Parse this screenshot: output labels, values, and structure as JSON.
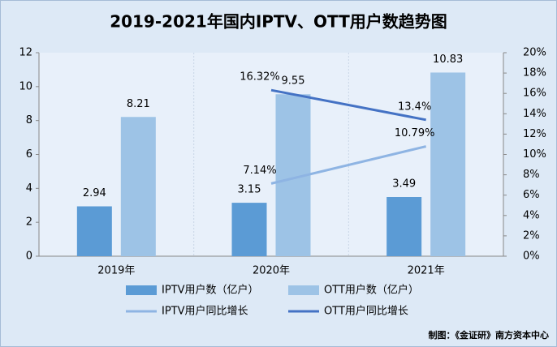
{
  "chart_data": {
    "type": "bar",
    "title": "2019-2021年国内IPTV、OTT用户数趋势图",
    "source": "制图：《金证研》南方资本中心",
    "categories": [
      "2019年",
      "2020年",
      "2021年"
    ],
    "series": [
      {
        "name": "IPTV用户数（亿户）",
        "type": "bar",
        "color": "#5b9bd5",
        "values": [
          2.94,
          3.15,
          3.49
        ]
      },
      {
        "name": "OTT用户数（亿户）",
        "type": "bar",
        "color": "#9dc3e6",
        "values": [
          8.21,
          9.55,
          10.83
        ]
      },
      {
        "name": "IPTV用户同比增长",
        "type": "line",
        "axis": "y2",
        "color": "#8eb4e3",
        "values": [
          null,
          7.14,
          10.79
        ],
        "value_labels": [
          null,
          "7.14%",
          "10.79%"
        ]
      },
      {
        "name": "OTT用户同比增长",
        "type": "line",
        "axis": "y2",
        "color": "#4472c4",
        "values": [
          null,
          16.32,
          13.4
        ],
        "value_labels": [
          null,
          "16.32%",
          "13.4%"
        ]
      }
    ],
    "ylim": [
      0,
      12
    ],
    "yticks": [
      0,
      2,
      4,
      6,
      8,
      10,
      12
    ],
    "y2lim": [
      0,
      20
    ],
    "y2ticks": [
      {
        "value": 0,
        "label": "0%"
      },
      {
        "value": 2,
        "label": "2%"
      },
      {
        "value": 4,
        "label": "4%"
      },
      {
        "value": 6,
        "label": "6%"
      },
      {
        "value": 8,
        "label": "8%"
      },
      {
        "value": 10,
        "label": "10%"
      },
      {
        "value": 12,
        "label": "12%"
      },
      {
        "value": 14,
        "label": "14%"
      },
      {
        "value": 16,
        "label": "16%"
      },
      {
        "value": 18,
        "label": "18%"
      },
      {
        "value": 20,
        "label": "20%"
      }
    ],
    "grid": false,
    "legend": "bottom"
  }
}
